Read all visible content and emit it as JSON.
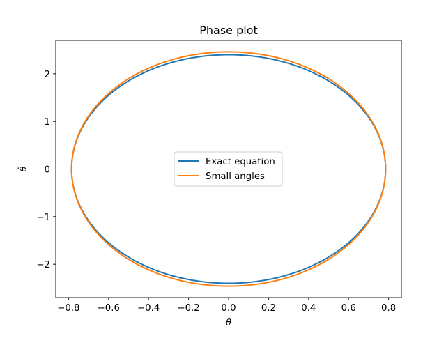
{
  "chart_data": {
    "type": "line",
    "title": "Phase plot",
    "xlabel": "θ",
    "ylabel": "θ̇",
    "xlim": [
      -0.864,
      0.864
    ],
    "ylim": [
      -2.7,
      2.7
    ],
    "xticks": [
      -0.8,
      -0.6,
      -0.4,
      -0.2,
      0.0,
      0.2,
      0.4,
      0.6,
      0.8
    ],
    "yticks": [
      -2,
      -1,
      0,
      1,
      2
    ],
    "xtick_labels": [
      "−0.8",
      "−0.6",
      "−0.4",
      "−0.2",
      "0.0",
      "0.2",
      "0.4",
      "0.6",
      "0.8"
    ],
    "ytick_labels": [
      "−2",
      "−1",
      "0",
      "1",
      "2"
    ],
    "grid": false,
    "legend_position": "center",
    "series": [
      {
        "name": "Exact equation",
        "color": "#1f77b4",
        "curve": "closed-orbit",
        "theta_amplitude": 0.785,
        "thetadot_amplitude": 2.4
      },
      {
        "name": "Small angles",
        "color": "#ff7f0e",
        "curve": "closed-orbit",
        "theta_amplitude": 0.785,
        "thetadot_amplitude": 2.46
      }
    ]
  }
}
